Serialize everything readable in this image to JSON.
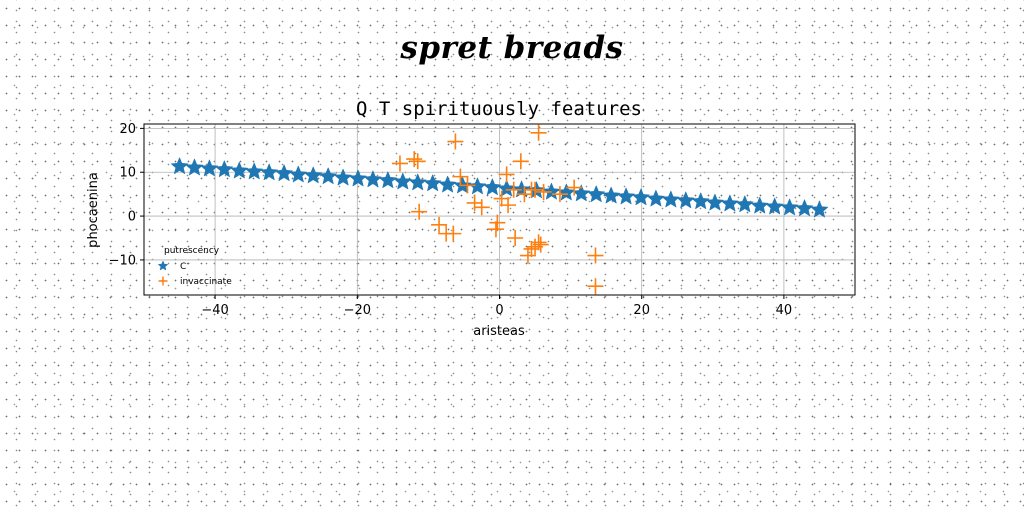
{
  "page": {
    "header_title": "spret breads"
  },
  "chart_data": {
    "type": "scatter",
    "title": "Q T spirituously features",
    "xlabel": "aristeas",
    "ylabel": "phocaenina",
    "xlim": [
      -50,
      50
    ],
    "ylim": [
      -18,
      21
    ],
    "xticks": [
      -40,
      -20,
      0,
      20,
      40
    ],
    "yticks": [
      -10,
      0,
      10,
      20
    ],
    "xtick_labels": [
      "−40",
      "−20",
      "0",
      "20",
      "40"
    ],
    "ytick_labels": [
      "−10",
      "0",
      "10",
      "20"
    ],
    "grid": true,
    "legend": {
      "title": "putrescency",
      "placement": "lower-left"
    },
    "series": [
      {
        "name": "C",
        "marker": "star",
        "color": "#1f77b4",
        "x": [
          -45.0,
          -42.9,
          -40.8,
          -38.7,
          -36.6,
          -34.5,
          -32.4,
          -30.3,
          -28.3,
          -26.2,
          -24.1,
          -22.0,
          -19.9,
          -17.8,
          -15.7,
          -13.6,
          -11.5,
          -9.4,
          -7.3,
          -5.2,
          -3.1,
          -1.0,
          1.0,
          3.1,
          5.2,
          7.3,
          9.4,
          11.5,
          13.6,
          15.7,
          17.8,
          19.9,
          22.0,
          24.1,
          26.2,
          28.3,
          30.3,
          32.4,
          34.5,
          36.6,
          38.7,
          40.8,
          42.9,
          45.0
        ],
        "y": [
          11.3,
          11.0,
          10.8,
          10.6,
          10.3,
          10.1,
          9.9,
          9.7,
          9.4,
          9.2,
          9.0,
          8.7,
          8.5,
          8.3,
          8.1,
          7.8,
          7.6,
          7.4,
          7.1,
          6.9,
          6.7,
          6.5,
          6.2,
          6.0,
          5.8,
          5.5,
          5.3,
          5.1,
          4.9,
          4.6,
          4.4,
          4.2,
          3.9,
          3.7,
          3.5,
          3.3,
          3.0,
          2.8,
          2.6,
          2.3,
          2.1,
          1.9,
          1.7,
          1.4
        ]
      },
      {
        "name": "invaccinate",
        "marker": "plus",
        "color": "#ff7f0e",
        "x": [
          -14.0,
          -12.0,
          -11.5,
          -11.3,
          -8.5,
          -7.5,
          -6.5,
          -6.2,
          -5.5,
          -4.5,
          -3.5,
          -2.5,
          0.3,
          -0.5,
          -0.3,
          1.0,
          1.2,
          2.0,
          2.2,
          3.0,
          3.5,
          4.0,
          4.5,
          5.0,
          5.5,
          5.8,
          6.2,
          8.5,
          10.5,
          13.5,
          13.5,
          5.5,
          5.0,
          4.5
        ],
        "y": [
          12.0,
          13.0,
          12.5,
          1.0,
          -2.0,
          -4.0,
          -4.0,
          17.0,
          9.0,
          7.0,
          3.0,
          2.0,
          4.0,
          -3.0,
          -1.5,
          9.5,
          2.5,
          6.0,
          -5.0,
          12.5,
          5.0,
          -9.0,
          -7.5,
          6.0,
          19.0,
          -6.5,
          5.5,
          5.0,
          6.5,
          -9.0,
          -16.0,
          -6.0,
          -7.0,
          6.0
        ]
      }
    ]
  }
}
